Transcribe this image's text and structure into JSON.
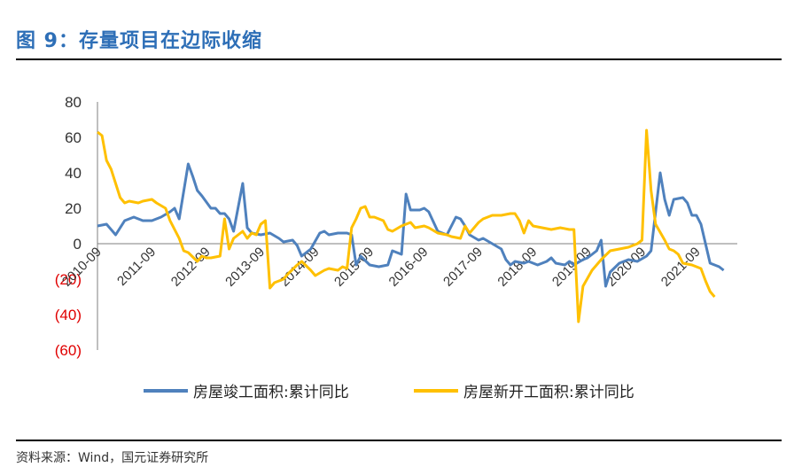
{
  "header": {
    "title": "图 9：存量项目在边际收缩"
  },
  "footer": {
    "source": "资料来源：Wind，国元证券研究所"
  },
  "colors": {
    "accent": "#2e6fb7",
    "negative": "#e00000"
  },
  "chart_data": {
    "type": "line",
    "ylim": [
      -60,
      80
    ],
    "yticks": [
      {
        "value": 80,
        "label": "80",
        "negative": false
      },
      {
        "value": 60,
        "label": "60",
        "negative": false
      },
      {
        "value": 40,
        "label": "40",
        "negative": false
      },
      {
        "value": 20,
        "label": "20",
        "negative": false
      },
      {
        "value": 0,
        "label": "0",
        "negative": false
      },
      {
        "value": -20,
        "label": "(20)",
        "negative": true
      },
      {
        "value": -40,
        "label": "(40)",
        "negative": true
      },
      {
        "value": -60,
        "label": "(60)",
        "negative": true
      }
    ],
    "xlim": [
      "2010-09",
      "2022-06"
    ],
    "xticks": [
      "2010-09",
      "2011-09",
      "2012-09",
      "2013-09",
      "2014-09",
      "2015-09",
      "2016-09",
      "2017-09",
      "2018-09",
      "2019-09",
      "2020-09",
      "2021-09"
    ],
    "grid": false,
    "legend_position": "bottom",
    "series": [
      {
        "name": "房屋竣工面积:累计同比",
        "color": "#4f81bd",
        "points": [
          [
            "2010-09",
            10
          ],
          [
            "2010-11",
            11
          ],
          [
            "2011-01",
            5
          ],
          [
            "2011-03",
            13
          ],
          [
            "2011-05",
            15
          ],
          [
            "2011-07",
            13
          ],
          [
            "2011-09",
            13
          ],
          [
            "2011-11",
            15
          ],
          [
            "2012-01",
            18
          ],
          [
            "2012-02",
            20
          ],
          [
            "2012-03",
            14
          ],
          [
            "2012-05",
            45
          ],
          [
            "2012-06",
            38
          ],
          [
            "2012-07",
            30
          ],
          [
            "2012-08",
            27
          ],
          [
            "2012-10",
            20
          ],
          [
            "2012-11",
            20
          ],
          [
            "2012-12",
            17
          ],
          [
            "2013-01",
            17
          ],
          [
            "2013-02",
            14
          ],
          [
            "2013-03",
            7
          ],
          [
            "2013-05",
            34
          ],
          [
            "2013-06",
            9
          ],
          [
            "2013-07",
            6
          ],
          [
            "2013-09",
            5
          ],
          [
            "2013-11",
            6
          ],
          [
            "2014-01",
            3
          ],
          [
            "2014-02",
            1
          ],
          [
            "2014-04",
            2
          ],
          [
            "2014-05",
            -1
          ],
          [
            "2014-06",
            -7
          ],
          [
            "2014-08",
            -3
          ],
          [
            "2014-10",
            6
          ],
          [
            "2014-11",
            7
          ],
          [
            "2014-12",
            5
          ],
          [
            "2015-02",
            6
          ],
          [
            "2015-04",
            6
          ],
          [
            "2015-05",
            5
          ],
          [
            "2015-06",
            -12
          ],
          [
            "2015-07",
            -7
          ],
          [
            "2015-09",
            -12
          ],
          [
            "2015-11",
            -13
          ],
          [
            "2016-01",
            -12
          ],
          [
            "2016-02",
            -4
          ],
          [
            "2016-04",
            -6
          ],
          [
            "2016-05",
            28
          ],
          [
            "2016-06",
            19
          ],
          [
            "2016-08",
            19
          ],
          [
            "2016-09",
            20
          ],
          [
            "2016-10",
            18
          ],
          [
            "2016-12",
            7
          ],
          [
            "2017-02",
            5
          ],
          [
            "2017-04",
            15
          ],
          [
            "2017-05",
            14
          ],
          [
            "2017-06",
            10
          ],
          [
            "2017-07",
            5
          ],
          [
            "2017-09",
            2
          ],
          [
            "2017-10",
            3
          ],
          [
            "2017-12",
            0
          ],
          [
            "2018-02",
            -3
          ],
          [
            "2018-03",
            -9
          ],
          [
            "2018-04",
            -12
          ],
          [
            "2018-05",
            -10
          ],
          [
            "2018-07",
            -11
          ],
          [
            "2018-08",
            -10
          ],
          [
            "2018-10",
            -12
          ],
          [
            "2018-11",
            -11
          ],
          [
            "2018-12",
            -10
          ],
          [
            "2019-01",
            -8
          ],
          [
            "2019-02",
            -11
          ],
          [
            "2019-04",
            -12
          ],
          [
            "2019-05",
            -10
          ],
          [
            "2019-06",
            -12
          ],
          [
            "2019-08",
            -9
          ],
          [
            "2019-09",
            -8
          ],
          [
            "2019-11",
            -4
          ],
          [
            "2019-12",
            2
          ],
          [
            "2020-01",
            -24
          ],
          [
            "2020-02",
            -16
          ],
          [
            "2020-04",
            -11
          ],
          [
            "2020-06",
            -9
          ],
          [
            "2020-08",
            -10
          ],
          [
            "2020-10",
            -7
          ],
          [
            "2020-11",
            -4
          ],
          [
            "2021-01",
            40
          ],
          [
            "2021-02",
            25
          ],
          [
            "2021-03",
            16
          ],
          [
            "2021-04",
            25
          ],
          [
            "2021-06",
            26
          ],
          [
            "2021-07",
            23
          ],
          [
            "2021-08",
            16
          ],
          [
            "2021-09",
            16
          ],
          [
            "2021-10",
            11
          ],
          [
            "2021-12",
            -11
          ],
          [
            "2022-02",
            -13
          ],
          [
            "2022-03",
            -15
          ]
        ]
      },
      {
        "name": "房屋新开工面积:累计同比",
        "color": "#ffc000",
        "points": [
          [
            "2010-09",
            63
          ],
          [
            "2010-10",
            61
          ],
          [
            "2010-11",
            47
          ],
          [
            "2010-12",
            42
          ],
          [
            "2011-02",
            26
          ],
          [
            "2011-03",
            23
          ],
          [
            "2011-04",
            24
          ],
          [
            "2011-06",
            23
          ],
          [
            "2011-07",
            24
          ],
          [
            "2011-09",
            25
          ],
          [
            "2011-10",
            23
          ],
          [
            "2011-12",
            20
          ],
          [
            "2012-01",
            13
          ],
          [
            "2012-03",
            3
          ],
          [
            "2012-04",
            -4
          ],
          [
            "2012-05",
            -5
          ],
          [
            "2012-07",
            -10
          ],
          [
            "2012-08",
            -7
          ],
          [
            "2012-09",
            -8
          ],
          [
            "2012-10",
            -8
          ],
          [
            "2012-12",
            -7
          ],
          [
            "2013-01",
            14
          ],
          [
            "2013-02",
            -3
          ],
          [
            "2013-03",
            3
          ],
          [
            "2013-05",
            7
          ],
          [
            "2013-06",
            3
          ],
          [
            "2013-07",
            6
          ],
          [
            "2013-08",
            5
          ],
          [
            "2013-09",
            11
          ],
          [
            "2013-10",
            13
          ],
          [
            "2013-11",
            -25
          ],
          [
            "2013-12",
            -22
          ],
          [
            "2014-02",
            -20
          ],
          [
            "2014-03",
            -17
          ],
          [
            "2014-05",
            -12
          ],
          [
            "2014-06",
            -10
          ],
          [
            "2014-08",
            -15
          ],
          [
            "2014-09",
            -18
          ],
          [
            "2014-11",
            -15
          ],
          [
            "2014-12",
            -14
          ],
          [
            "2015-02",
            -15
          ],
          [
            "2015-03",
            -13
          ],
          [
            "2015-04",
            -14
          ],
          [
            "2015-05",
            9
          ],
          [
            "2015-06",
            14
          ],
          [
            "2015-07",
            20
          ],
          [
            "2015-08",
            21
          ],
          [
            "2015-09",
            15
          ],
          [
            "2015-10",
            15
          ],
          [
            "2015-12",
            13
          ],
          [
            "2016-01",
            8
          ],
          [
            "2016-02",
            7
          ],
          [
            "2016-04",
            10
          ],
          [
            "2016-06",
            12
          ],
          [
            "2016-07",
            9
          ],
          [
            "2016-09",
            10
          ],
          [
            "2016-10",
            9
          ],
          [
            "2016-12",
            6
          ],
          [
            "2017-02",
            5
          ],
          [
            "2017-03",
            4
          ],
          [
            "2017-05",
            3
          ],
          [
            "2017-06",
            10
          ],
          [
            "2017-07",
            6
          ],
          [
            "2017-09",
            12
          ],
          [
            "2017-10",
            14
          ],
          [
            "2017-12",
            16
          ],
          [
            "2018-02",
            16
          ],
          [
            "2018-04",
            17
          ],
          [
            "2018-05",
            17
          ],
          [
            "2018-06",
            13
          ],
          [
            "2018-07",
            6
          ],
          [
            "2018-08",
            13
          ],
          [
            "2018-09",
            10
          ],
          [
            "2018-11",
            9
          ],
          [
            "2019-01",
            8
          ],
          [
            "2019-03",
            9
          ],
          [
            "2019-05",
            8
          ],
          [
            "2019-06",
            8
          ],
          [
            "2019-07",
            -44
          ],
          [
            "2019-08",
            -24
          ],
          [
            "2019-10",
            -15
          ],
          [
            "2019-12",
            -9
          ],
          [
            "2020-02",
            -4
          ],
          [
            "2020-04",
            -3
          ],
          [
            "2020-06",
            -2
          ],
          [
            "2020-08",
            0
          ],
          [
            "2020-09",
            2
          ],
          [
            "2020-10",
            64
          ],
          [
            "2020-11",
            30
          ],
          [
            "2020-12",
            11
          ],
          [
            "2021-02",
            2
          ],
          [
            "2021-03",
            -3
          ],
          [
            "2021-04",
            -4
          ],
          [
            "2021-05",
            -6
          ],
          [
            "2021-06",
            -11
          ],
          [
            "2021-08",
            -12
          ],
          [
            "2021-10",
            -14
          ],
          [
            "2021-11",
            -21
          ],
          [
            "2021-12",
            -27
          ],
          [
            "2022-01",
            -30
          ]
        ]
      }
    ]
  }
}
